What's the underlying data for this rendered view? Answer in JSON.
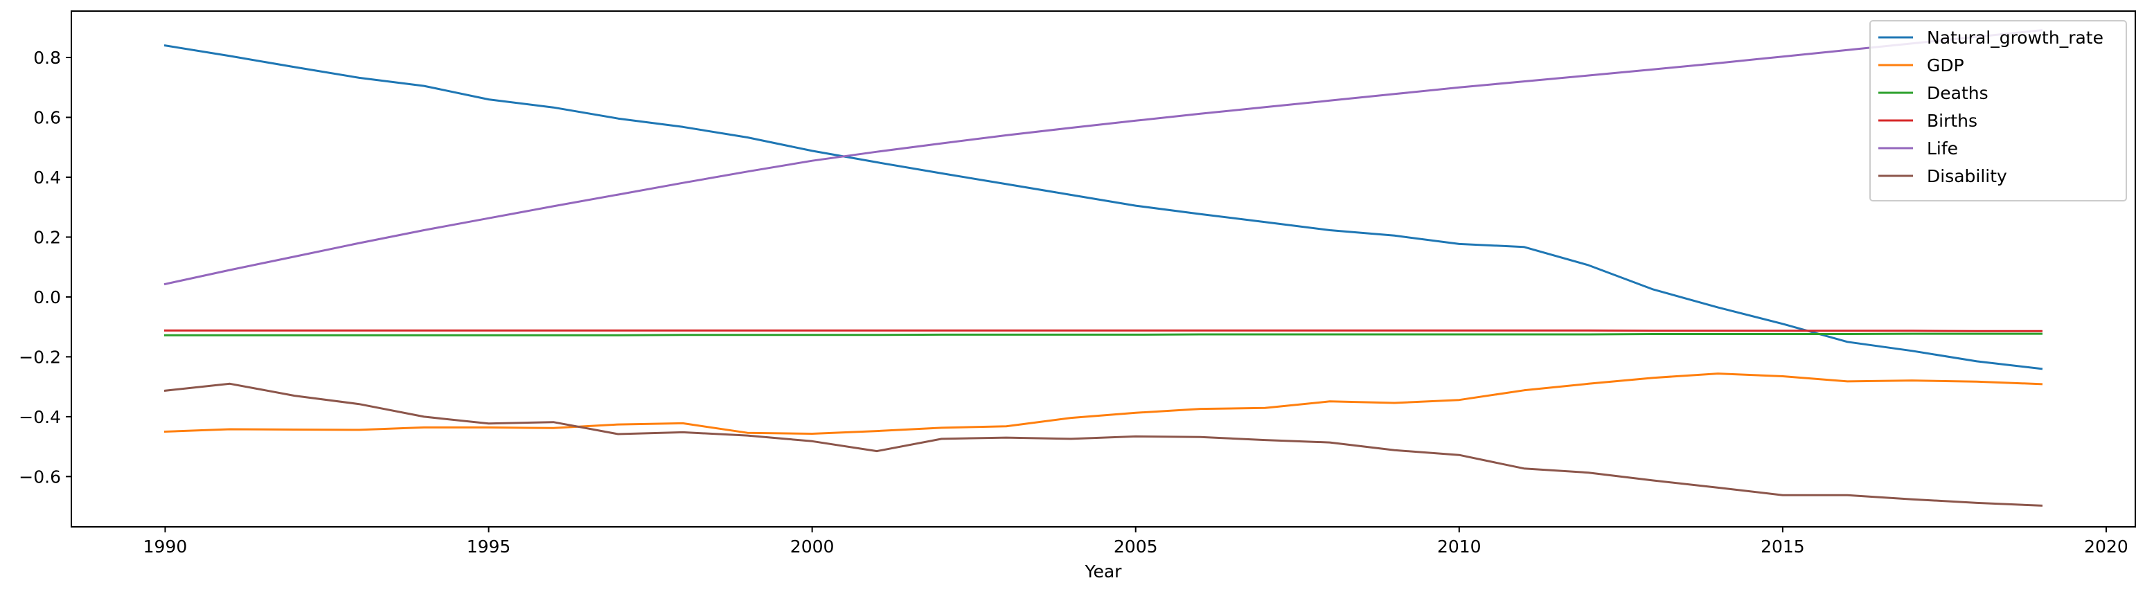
{
  "chart_data": {
    "type": "line",
    "title": "",
    "xlabel": "Year",
    "ylabel": "",
    "xlim": [
      1988.55,
      2020.45
    ],
    "ylim": [
      -0.768,
      0.955
    ],
    "xticks": [
      1990,
      1995,
      2000,
      2005,
      2010,
      2015,
      2020
    ],
    "xtick_labels": [
      "1990",
      "1995",
      "2000",
      "2005",
      "2010",
      "2015",
      "2020"
    ],
    "yticks": [
      -0.6,
      -0.4,
      -0.2,
      0.0,
      0.2,
      0.4,
      0.6,
      0.8
    ],
    "ytick_labels": [
      "−0.6",
      "−0.4",
      "−0.2",
      "0.0",
      "0.2",
      "0.4",
      "0.6",
      "0.8"
    ],
    "grid": false,
    "legend_position": "top-right",
    "x": [
      1990,
      1991,
      1992,
      1993,
      1994,
      1995,
      1996,
      1997,
      1998,
      1999,
      2000,
      2001,
      2002,
      2003,
      2004,
      2005,
      2006,
      2007,
      2008,
      2009,
      2010,
      2011,
      2012,
      2013,
      2014,
      2015,
      2016,
      2017,
      2018,
      2019
    ],
    "series": [
      {
        "name": "Natural_growth_rate",
        "color": "#1f77b4",
        "values": [
          0.84,
          0.805,
          0.768,
          0.732,
          0.705,
          0.66,
          0.633,
          0.596,
          0.568,
          0.533,
          0.488,
          0.45,
          0.413,
          0.377,
          0.341,
          0.305,
          0.277,
          0.25,
          0.223,
          0.205,
          0.177,
          0.167,
          0.106,
          0.025,
          -0.035,
          -0.09,
          -0.15,
          -0.18,
          -0.215,
          -0.24
        ]
      },
      {
        "name": "GDP",
        "color": "#ff7f0e",
        "values": [
          -0.45,
          -0.442,
          -0.443,
          -0.444,
          -0.436,
          -0.436,
          -0.438,
          -0.426,
          -0.422,
          -0.454,
          -0.457,
          -0.448,
          -0.437,
          -0.432,
          -0.404,
          -0.387,
          -0.374,
          -0.371,
          -0.349,
          -0.354,
          -0.344,
          -0.312,
          -0.29,
          -0.27,
          -0.256,
          -0.265,
          -0.282,
          -0.279,
          -0.283,
          -0.291
        ]
      },
      {
        "name": "Deaths",
        "color": "#2ca02c",
        "values": [
          -0.128,
          -0.128,
          -0.128,
          -0.128,
          -0.128,
          -0.128,
          -0.128,
          -0.128,
          -0.127,
          -0.127,
          -0.127,
          -0.127,
          -0.126,
          -0.126,
          -0.126,
          -0.126,
          -0.125,
          -0.125,
          -0.125,
          -0.125,
          -0.125,
          -0.125,
          -0.125,
          -0.124,
          -0.124,
          -0.124,
          -0.124,
          -0.123,
          -0.123,
          -0.123
        ]
      },
      {
        "name": "Births",
        "color": "#d62728",
        "values": [
          -0.112,
          -0.112,
          -0.112,
          -0.112,
          -0.112,
          -0.112,
          -0.112,
          -0.112,
          -0.112,
          -0.112,
          -0.112,
          -0.112,
          -0.112,
          -0.112,
          -0.112,
          -0.112,
          -0.112,
          -0.112,
          -0.112,
          -0.112,
          -0.112,
          -0.112,
          -0.112,
          -0.113,
          -0.113,
          -0.113,
          -0.113,
          -0.113,
          -0.114,
          -0.114
        ]
      },
      {
        "name": "Life",
        "color": "#9467bd",
        "values": [
          0.043,
          0.09,
          0.135,
          0.18,
          0.223,
          0.263,
          0.303,
          0.342,
          0.381,
          0.419,
          0.455,
          0.485,
          0.513,
          0.54,
          0.565,
          0.589,
          0.612,
          0.634,
          0.656,
          0.678,
          0.7,
          0.72,
          0.74,
          0.76,
          0.781,
          0.803,
          0.825,
          0.847,
          0.869,
          0.891
        ]
      },
      {
        "name": "Disability",
        "color": "#8c564b",
        "values": [
          -0.313,
          -0.29,
          -0.33,
          -0.358,
          -0.4,
          -0.423,
          -0.418,
          -0.458,
          -0.452,
          -0.463,
          -0.482,
          -0.515,
          -0.474,
          -0.47,
          -0.474,
          -0.466,
          -0.468,
          -0.478,
          -0.486,
          -0.512,
          -0.528,
          -0.573,
          -0.587,
          -0.613,
          -0.637,
          -0.662,
          -0.662,
          -0.676,
          -0.688,
          -0.697
        ]
      }
    ]
  }
}
